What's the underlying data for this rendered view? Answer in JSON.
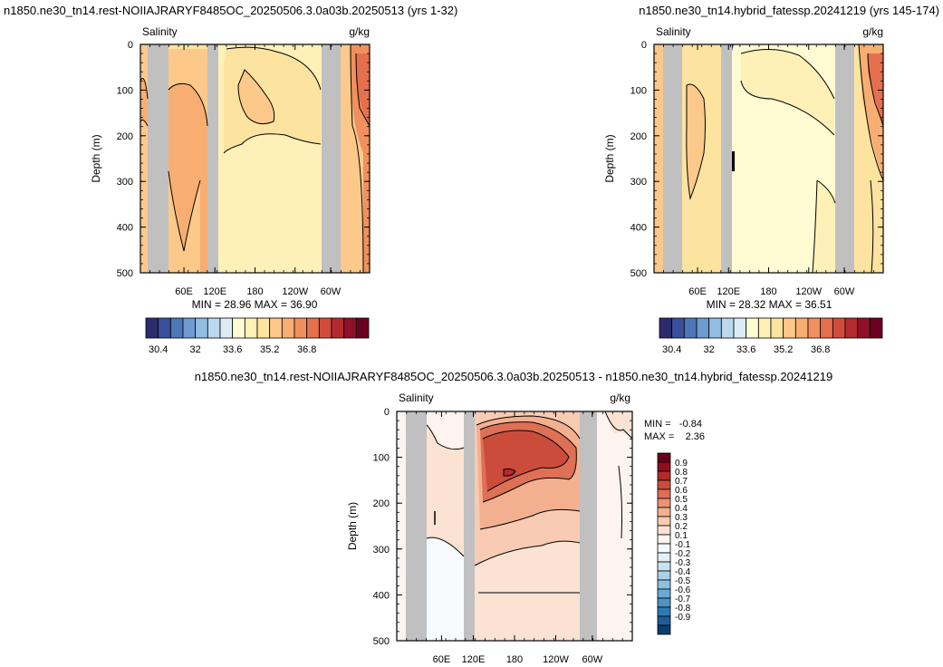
{
  "palette": {
    "land": "#c0c0c0",
    "salinity": [
      "#2b2b6e",
      "#3a4f9b",
      "#4f76b8",
      "#6e9bd0",
      "#93bce0",
      "#bcd8ec",
      "#dcecf6",
      "#fffbd2",
      "#fff0b8",
      "#fde3a0",
      "#fcc98a",
      "#f8ae72",
      "#f1905e",
      "#e4704e",
      "#cf4c3d",
      "#b32a31",
      "#8e1029",
      "#6b0021"
    ],
    "diff": [
      "#0b3c6e",
      "#1d5d9a",
      "#2f79b5",
      "#4a94c6",
      "#6aabd4",
      "#8cc0df",
      "#abd1e8",
      "#c9e2f0",
      "#e3eff6",
      "#f7fbfd",
      "#fdf4ef",
      "#fbe2d3",
      "#f8cbb2",
      "#f3b091",
      "#eb9272",
      "#de7055",
      "#cc4c3b",
      "#b42a2a",
      "#8f0f1e",
      "#67001f"
    ]
  },
  "chart_data": [
    {
      "type": "heatmap",
      "title": "n1850.ne30_tn14.rest-NOIIAJRARYF8485OC_20250506.3.0a03b.20250513 (yrs 1-32)",
      "left_label": "Salinity",
      "right_label": "g/kg",
      "ylabel": "Depth (m)",
      "yticks": [
        0,
        100,
        200,
        300,
        400,
        500
      ],
      "ylim": [
        500,
        0
      ],
      "xticks": [
        "60E",
        "120E",
        "180",
        "120W",
        "60W"
      ],
      "stats": "MIN = 28.96  MAX = 36.90",
      "colorbar_labels": [
        "30.4",
        "32",
        "33.6",
        "35.2",
        "36.8"
      ]
    },
    {
      "type": "heatmap",
      "title": "n1850.ne30_tn14.hybrid_fatessp.20241219 (yrs 145-174)",
      "left_label": "Salinity",
      "right_label": "g/kg",
      "ylabel": "Depth (m)",
      "yticks": [
        0,
        100,
        200,
        300,
        400,
        500
      ],
      "ylim": [
        500,
        0
      ],
      "xticks": [
        "60E",
        "120E",
        "180",
        "120W",
        "60W"
      ],
      "stats": "MIN = 28.32  MAX = 36.51",
      "colorbar_labels": [
        "30.4",
        "32",
        "33.6",
        "35.2",
        "36.8"
      ]
    },
    {
      "type": "heatmap",
      "title": "n1850.ne30_tn14.rest-NOIIAJRARYF8485OC_20250506.3.0a03b.20250513 - n1850.ne30_tn14.hybrid_fatessp.20241219",
      "left_label": "Salinity",
      "right_label": "g/kg",
      "ylabel": "Depth (m)",
      "yticks": [
        0,
        100,
        200,
        300,
        400,
        500
      ],
      "ylim": [
        500,
        0
      ],
      "xticks": [
        "60E",
        "120E",
        "180",
        "120W",
        "60W"
      ],
      "min_label": "MIN =",
      "min_value": "-0.84",
      "max_label": "MAX =",
      "max_value": "2.36",
      "colorbar_labels": [
        "0.9",
        "0.8",
        "0.7",
        "0.6",
        "0.5",
        "0.4",
        "0.3",
        "0.2",
        "0.1",
        "-0.1",
        "-0.2",
        "-0.3",
        "-0.4",
        "-0.5",
        "-0.6",
        "-0.7",
        "-0.8",
        "-0.9"
      ]
    }
  ]
}
